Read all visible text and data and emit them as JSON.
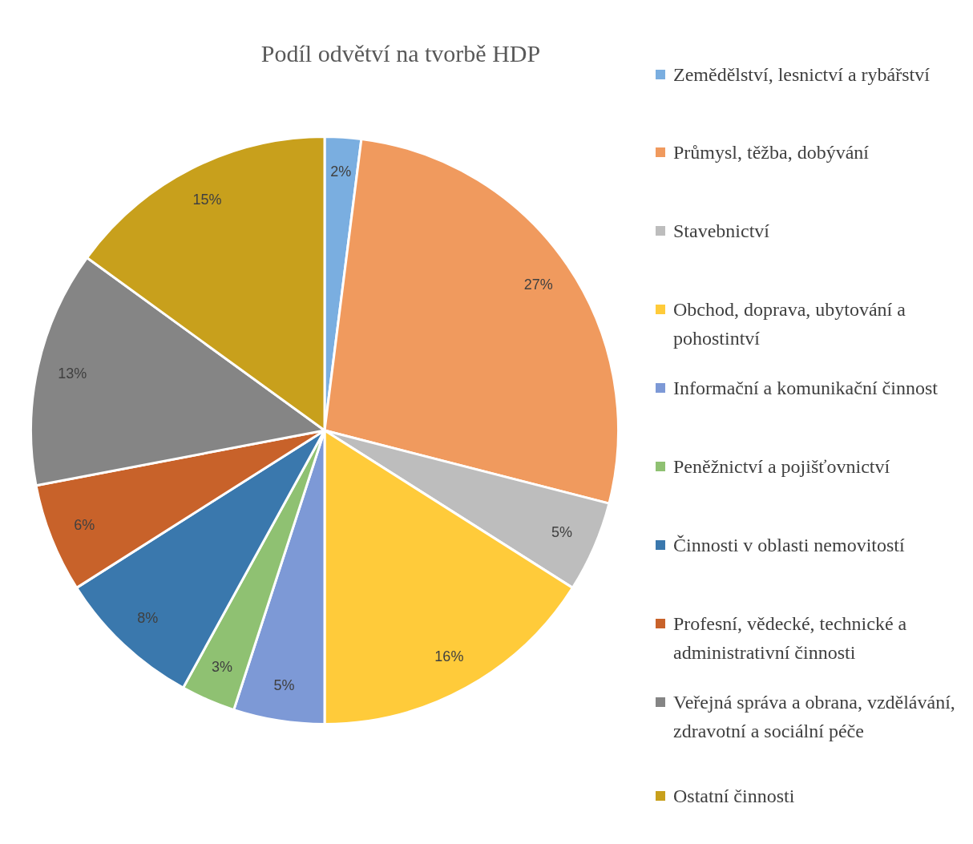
{
  "chart_data": {
    "type": "pie",
    "title": "Podíl odvětví na tvorbě HDP",
    "categories": [
      "Zemědělství, lesnictví a rybářství",
      "Průmysl, těžba, dobývání",
      "Stavebnictví",
      "Obchod, doprava, ubytování a pohostintví",
      "Informační a komunikační činnost",
      "Peněžnictví a pojišťovnictví",
      "Činnosti v oblasti nemovitostí",
      "Profesní, vědecké, technické a administrativní činnosti",
      "Veřejná správa a obrana, vzdělávání, zdravotní a sociální péče",
      "Ostatní činnosti"
    ],
    "values": [
      2,
      27,
      5,
      16,
      5,
      3,
      8,
      6,
      13,
      15
    ],
    "value_labels": [
      "2%",
      "27%",
      "5%",
      "16%",
      "5%",
      "3%",
      "8%",
      "6%",
      "13%",
      "15%"
    ],
    "colors": [
      "#7aaee0",
      "#f09a5e",
      "#bdbdbd",
      "#ffcb3a",
      "#7d99d6",
      "#8fc172",
      "#3a78ad",
      "#c8622a",
      "#858585",
      "#c8a01c"
    ],
    "legend": "right"
  }
}
